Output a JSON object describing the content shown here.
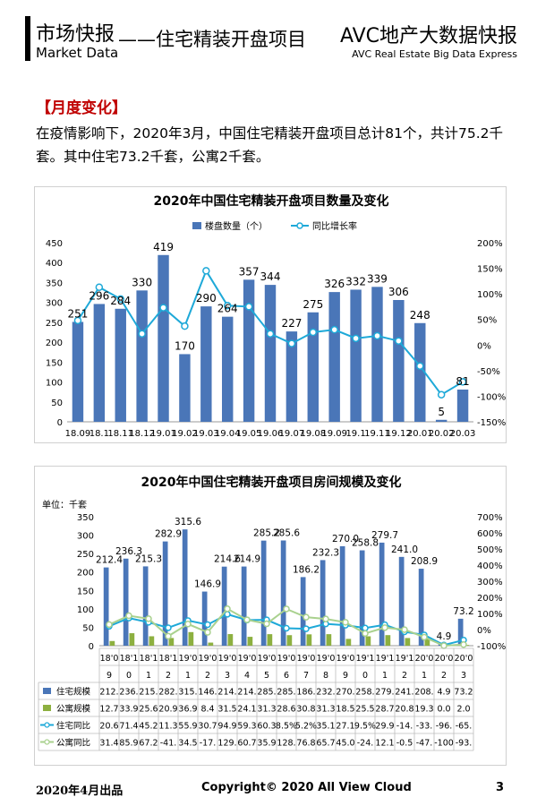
{
  "header": {
    "title_cn": "市场快报",
    "title_en": "Market Data",
    "subtitle": "——住宅精装开盘项目",
    "brand_cn": "AVC地产大数据快报",
    "brand_en": "AVC  Real Estate Big Data Express"
  },
  "section_title": "【月度变化】",
  "paragraph": "在疫情影响下，2020年3月，中国住宅精装开盘项目总计81个，共计75.2千套。其中住宅73.2千套，公寓2千套。",
  "chart_data": [
    {
      "type": "bar",
      "title": "2020年中国住宅精装开盘项目数量及变化",
      "categories": [
        "18.09",
        "18.1",
        "18.11",
        "18.12",
        "19.01",
        "19.02",
        "19.03",
        "19.04",
        "19.05",
        "19.06",
        "19.07",
        "19.08",
        "19.09",
        "19.1",
        "19.11",
        "19.12",
        "20.01",
        "20.02",
        "20.03"
      ],
      "series": [
        {
          "name": "楼盘数量（个）",
          "type": "bar",
          "axis": "left",
          "values": [
            251,
            296,
            284,
            330,
            419,
            170,
            290,
            264,
            357,
            344,
            227,
            275,
            326,
            332,
            339,
            306,
            248,
            5,
            81
          ]
        },
        {
          "name": "同比增长率",
          "type": "line",
          "axis": "right",
          "values": [
            48,
            113,
            90,
            22,
            73,
            37,
            145,
            77,
            75,
            22,
            3,
            25,
            30,
            13,
            18,
            8,
            -41,
            -97,
            -72
          ]
        }
      ],
      "ylim_left": [
        0,
        450
      ],
      "yticks_left": [
        "450",
        "400",
        "350",
        "300",
        "250",
        "200",
        "150",
        "100",
        "50",
        "0"
      ],
      "ylim_right": [
        -150,
        200
      ],
      "yticks_right": [
        "200%",
        "150%",
        "100%",
        "50%",
        "0%",
        "-50%",
        "-100%",
        "-150%"
      ],
      "legend": "top",
      "colors": {
        "bar": "#4a76b8",
        "line": "#1ea9d8"
      }
    },
    {
      "type": "bar",
      "title": "2020年中国住宅精装开盘项目房间规模及变化",
      "unit_label": "单位：千套",
      "categories_line1": [
        "18'0",
        "18'1",
        "18'1",
        "18'1",
        "19'0",
        "19'0",
        "19'0",
        "19'0",
        "19'0",
        "19'0",
        "19'0",
        "19'0",
        "19'0",
        "19'1",
        "19'1",
        "19'1",
        "20'0",
        "20'0",
        "20'0"
      ],
      "categories_line2": [
        "9",
        "0",
        "1",
        "2",
        "1",
        "2",
        "3",
        "4",
        "5",
        "6",
        "7",
        "8",
        "9",
        "0",
        "1",
        "2",
        "1",
        "2",
        "3"
      ],
      "series": [
        {
          "name": "住宅规模",
          "type": "bar",
          "axis": "left",
          "values": [
            212.4,
            236.3,
            215.3,
            282.9,
            315.6,
            146.9,
            214.6,
            214.9,
            285.2,
            285.6,
            186.2,
            232.3,
            270.0,
            258.8,
            279.7,
            241.0,
            208.9,
            4.9,
            73.2
          ]
        },
        {
          "name": "公寓规模",
          "type": "bar",
          "axis": "left",
          "values": [
            12.7,
            33.9,
            25.6,
            20.9,
            36.9,
            8.4,
            31.5,
            24.1,
            31.3,
            28.6,
            30.8,
            31.3,
            18.5,
            25.5,
            28.7,
            20.8,
            19.3,
            0.0,
            2.0
          ]
        },
        {
          "name": "住宅同比",
          "type": "line",
          "axis": "right",
          "values": [
            20.6,
            71.4,
            45.2,
            11.3,
            55.9,
            30.7,
            94.9,
            59.3,
            60.3,
            8.5,
            5.2,
            35.1,
            27.1,
            9.5,
            29.9,
            -14,
            -33,
            -96,
            -65
          ]
        },
        {
          "name": "公寓同比",
          "type": "line",
          "axis": "right",
          "values": [
            31.4,
            85.9,
            67.2,
            -41,
            34.5,
            -17,
            129,
            60.7,
            35.9,
            128,
            76.8,
            65.7,
            45.0,
            -24,
            12.1,
            -0.5,
            -47,
            -100,
            -93
          ]
        }
      ],
      "value_labels": [
        "212.4",
        "236.3",
        "215.3",
        "282.9",
        "315.6",
        "146.9",
        "214.6",
        "214.9",
        "285.2",
        "285.6",
        "186.2",
        "232.3",
        "270.0",
        "258.8",
        "279.7",
        "241.0",
        "208.9",
        "4.9",
        "73.2"
      ],
      "table": {
        "rows": [
          {
            "label": "住宅规模",
            "cells": [
              "212.",
              "236.",
              "215.",
              "282.",
              "315.",
              "146.",
              "214.",
              "214.",
              "285.",
              "285.",
              "186.",
              "232.",
              "270.",
              "258.",
              "279.",
              "241.",
              "208.",
              "4.9",
              "73.2"
            ]
          },
          {
            "label": "公寓规模",
            "cells": [
              "12.7",
              "33.9",
              "25.6",
              "20.9",
              "36.9",
              "8.4",
              "31.5",
              "24.1",
              "31.3",
              "28.6",
              "30.8",
              "31.3",
              "18.5",
              "25.5",
              "28.7",
              "20.8",
              "19.3",
              "0.0",
              "2.0"
            ]
          },
          {
            "label": "住宅同比",
            "cells": [
              "20.6",
              "71.4",
              "45.2",
              "11.3",
              "55.9",
              "30.7",
              "94.9",
              "59.3",
              "60.3",
              "8.5%",
              "5.2%",
              "35.1",
              "27.1",
              "9.5%",
              "29.9",
              "-14.",
              "-33.",
              "-96.",
              "-65."
            ]
          },
          {
            "label": "公寓同比",
            "cells": [
              "31.4",
              "85.9",
              "67.2",
              "-41.",
              "34.5",
              "-17.",
              "129.",
              "60.7",
              "35.9",
              "128.",
              "76.8",
              "65.7",
              "45.0",
              "-24.",
              "12.1",
              "-0.5",
              "-47.",
              "-100",
              "-93."
            ]
          }
        ]
      },
      "ylim_left": [
        0,
        350
      ],
      "yticks_left": [
        "350",
        "300",
        "250",
        "200",
        "150",
        "100",
        "50",
        "0"
      ],
      "ylim_right": [
        -100,
        700
      ],
      "yticks_right": [
        "700%",
        "600%",
        "500%",
        "400%",
        "300%",
        "200%",
        "100%",
        "0%",
        "-100%"
      ],
      "colors": {
        "bar1": "#4a76b8",
        "bar2": "#8db040",
        "line1": "#1ea9d8",
        "line2": "#a9d18e"
      }
    }
  ],
  "footer": {
    "left": "2020年4月出品",
    "middle": "Copyright© 2020  All View Cloud",
    "page": "3"
  }
}
